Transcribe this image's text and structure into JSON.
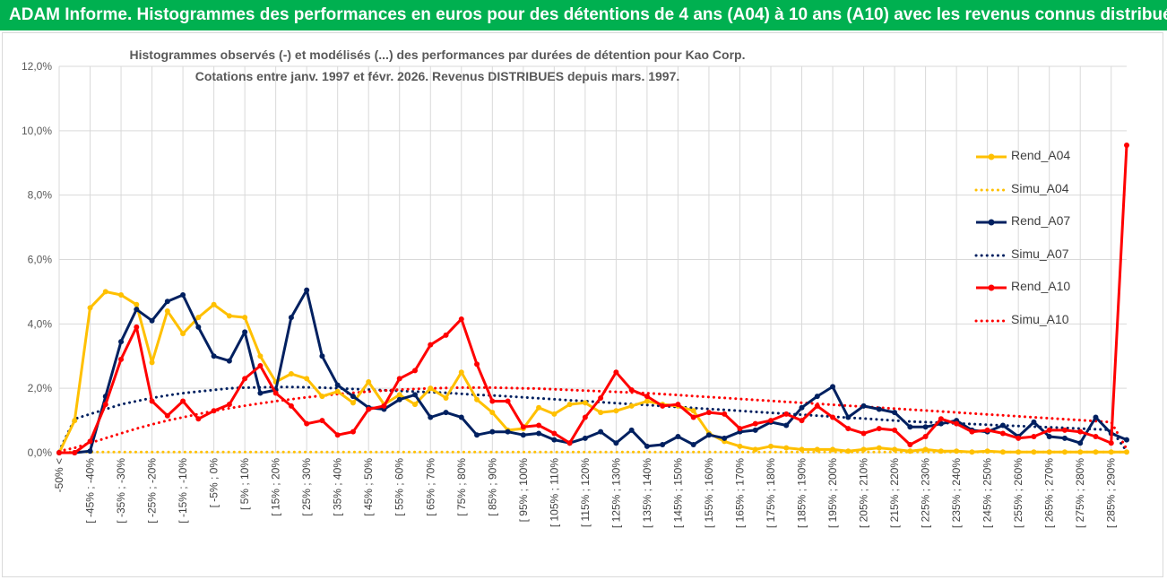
{
  "banner": {
    "title": "ADAM Informe. Histogrammes des performances en euros pour des détentions de 4 ans (A04) à 10 ans (A10) avec les revenus connus distribués"
  },
  "chart_data": {
    "type": "line",
    "title_lines": [
      "Histogrammes observés (-) et modélisés (...) des performances par durées de détention pour Kao Corp.",
      "Cotations entre janv. 1997 et févr. 2026. Revenus DISTRIBUES depuis mars. 1997."
    ],
    "ylim": [
      0,
      12
    ],
    "y_ticks": [
      0,
      2,
      4,
      6,
      8,
      10,
      12
    ],
    "y_tick_labels": [
      "0,0%",
      "2,0%",
      "4,0%",
      "6,0%",
      "8,0%",
      "10,0%",
      "12,0%"
    ],
    "grid": true,
    "legend_position": "right",
    "x_tick_labels": [
      "-50% <",
      "[ -45% ; -40%",
      "[ -35% ; -30%",
      "[ -25% ; -20%",
      "[ -15% ; -10%",
      "[ -5% ; 0%",
      "[ 5% ; 10%",
      "[ 15% ; 20%",
      "[ 25% ; 30%",
      "[ 35% ; 40%",
      "[ 45% ; 50%",
      "[ 55% ; 60%",
      "[ 65% ; 70%",
      "[ 75% ; 80%",
      "[ 85% ; 90%",
      "[ 95% ; 100%",
      "[ 105% ; 110%",
      "[ 115% ; 120%",
      "[ 125% ; 130%",
      "[ 135% ; 140%",
      "[ 145% ; 150%",
      "[ 155% ; 160%",
      "[ 165% ; 170%",
      "[ 175% ; 180%",
      "[ 185% ; 190%",
      "[ 195% ; 200%",
      "[ 205% ; 210%",
      "[ 215% ; 220%",
      "[ 225% ; 230%",
      "[ 235% ; 240%",
      "[ 245% ; 250%",
      "[ 255% ; 260%",
      "[ 265% ; 270%",
      "[ 275% ; 280%",
      "[ 285% ; 290%"
    ],
    "x_count": 70,
    "series": [
      {
        "name": "Rend_A04",
        "style": "solid",
        "color": "#ffc000",
        "values": [
          0.0,
          1.0,
          4.5,
          5.0,
          4.9,
          4.6,
          2.8,
          4.4,
          3.7,
          4.2,
          4.6,
          4.25,
          4.2,
          3.0,
          2.2,
          2.45,
          2.3,
          1.75,
          1.9,
          1.55,
          2.2,
          1.5,
          1.8,
          1.5,
          2.0,
          1.7,
          2.5,
          1.65,
          1.25,
          0.7,
          0.75,
          1.4,
          1.2,
          1.5,
          1.55,
          1.25,
          1.3,
          1.45,
          1.6,
          1.5,
          1.45,
          1.3,
          0.6,
          0.35,
          0.2,
          0.1,
          0.2,
          0.15,
          0.1,
          0.1,
          0.1,
          0.05,
          0.1,
          0.15,
          0.1,
          0.05,
          0.1,
          0.05,
          0.05,
          0.02,
          0.05,
          0.02,
          0.02,
          0.02,
          0.02,
          0.02,
          0.02,
          0.02,
          0.02,
          0.02
        ]
      },
      {
        "name": "Simu_A04",
        "style": "dotted",
        "color": "#ffc000",
        "values": [
          0.02,
          0.02,
          0.02,
          0.02,
          0.02,
          0.02,
          0.02,
          0.02,
          0.02,
          0.02,
          0.02,
          0.02,
          0.02,
          0.02,
          0.02,
          0.02,
          0.02,
          0.02,
          0.02,
          0.02,
          0.02,
          0.02,
          0.02,
          0.02,
          0.02,
          0.02,
          0.02,
          0.02,
          0.02,
          0.02,
          0.02,
          0.02,
          0.02,
          0.02,
          0.02,
          0.02,
          0.02,
          0.02,
          0.02,
          0.02,
          0.02,
          0.02,
          0.02,
          0.02,
          0.02,
          0.02,
          0.02,
          0.02,
          0.02,
          0.02,
          0.02,
          0.02,
          0.02,
          0.02,
          0.02,
          0.02,
          0.02,
          0.02,
          0.02,
          0.02,
          0.02,
          0.02,
          0.02,
          0.02,
          0.02,
          0.02,
          0.02,
          0.02,
          0.02,
          0.02
        ]
      },
      {
        "name": "Rend_A07",
        "style": "solid",
        "color": "#002060",
        "values": [
          0.0,
          0.0,
          0.05,
          1.75,
          3.45,
          4.45,
          4.1,
          4.7,
          4.9,
          3.9,
          3.0,
          2.85,
          3.75,
          1.85,
          1.95,
          4.2,
          5.05,
          3.0,
          2.1,
          1.75,
          1.4,
          1.35,
          1.65,
          1.8,
          1.1,
          1.25,
          1.1,
          0.55,
          0.65,
          0.65,
          0.55,
          0.6,
          0.4,
          0.3,
          0.45,
          0.65,
          0.3,
          0.7,
          0.2,
          0.25,
          0.5,
          0.25,
          0.55,
          0.45,
          0.65,
          0.7,
          0.95,
          0.85,
          1.4,
          1.75,
          2.05,
          1.1,
          1.45,
          1.35,
          1.25,
          0.8,
          0.8,
          0.9,
          1.0,
          0.7,
          0.65,
          0.85,
          0.5,
          0.95,
          0.5,
          0.45,
          0.3,
          1.1,
          0.6,
          0.4
        ]
      },
      {
        "name": "Simu_A07",
        "style": "dotted",
        "color": "#002060",
        "values": [
          0.05,
          1.05,
          1.2,
          1.35,
          1.5,
          1.6,
          1.7,
          1.78,
          1.85,
          1.9,
          1.95,
          2.0,
          2.02,
          2.03,
          2.04,
          2.04,
          2.03,
          2.02,
          2.0,
          1.98,
          1.96,
          1.94,
          1.92,
          1.9,
          1.88,
          1.86,
          1.83,
          1.8,
          1.78,
          1.75,
          1.72,
          1.69,
          1.66,
          1.63,
          1.6,
          1.57,
          1.54,
          1.51,
          1.48,
          1.45,
          1.42,
          1.39,
          1.36,
          1.33,
          1.3,
          1.27,
          1.24,
          1.21,
          1.18,
          1.15,
          1.12,
          1.09,
          1.06,
          1.03,
          1.0,
          0.97,
          0.95,
          0.93,
          0.91,
          0.89,
          0.87,
          0.85,
          0.83,
          0.81,
          0.79,
          0.77,
          0.75,
          0.73,
          0.71,
          0.05
        ]
      },
      {
        "name": "Rend_A10",
        "style": "solid",
        "color": "#ff0000",
        "values": [
          0.0,
          0.0,
          0.35,
          1.5,
          2.9,
          3.9,
          1.6,
          1.15,
          1.6,
          1.05,
          1.3,
          1.5,
          2.3,
          2.7,
          1.85,
          1.45,
          0.9,
          1.0,
          0.55,
          0.65,
          1.35,
          1.45,
          2.3,
          2.55,
          3.35,
          3.65,
          4.15,
          2.75,
          1.6,
          1.6,
          0.8,
          0.85,
          0.6,
          0.3,
          1.1,
          1.7,
          2.5,
          1.95,
          1.75,
          1.45,
          1.5,
          1.1,
          1.25,
          1.2,
          0.75,
          0.9,
          1.0,
          1.2,
          1.0,
          1.45,
          1.1,
          0.75,
          0.6,
          0.75,
          0.7,
          0.25,
          0.5,
          1.05,
          0.9,
          0.65,
          0.7,
          0.6,
          0.45,
          0.5,
          0.7,
          0.7,
          0.65,
          0.5,
          0.3,
          9.55
        ]
      },
      {
        "name": "Simu_A10",
        "style": "dotted",
        "color": "#ff0000",
        "values": [
          0.05,
          0.15,
          0.3,
          0.45,
          0.6,
          0.75,
          0.88,
          1.0,
          1.1,
          1.2,
          1.3,
          1.38,
          1.46,
          1.53,
          1.6,
          1.66,
          1.72,
          1.77,
          1.82,
          1.86,
          1.9,
          1.93,
          1.96,
          1.98,
          2.0,
          2.01,
          2.02,
          2.02,
          2.02,
          2.01,
          2.0,
          1.99,
          1.97,
          1.95,
          1.93,
          1.91,
          1.89,
          1.87,
          1.85,
          1.82,
          1.79,
          1.76,
          1.73,
          1.7,
          1.67,
          1.64,
          1.61,
          1.58,
          1.55,
          1.52,
          1.49,
          1.46,
          1.43,
          1.4,
          1.37,
          1.34,
          1.31,
          1.28,
          1.25,
          1.22,
          1.19,
          1.16,
          1.13,
          1.1,
          1.07,
          1.04,
          1.01,
          0.98,
          0.95,
          0.12
        ]
      }
    ]
  }
}
